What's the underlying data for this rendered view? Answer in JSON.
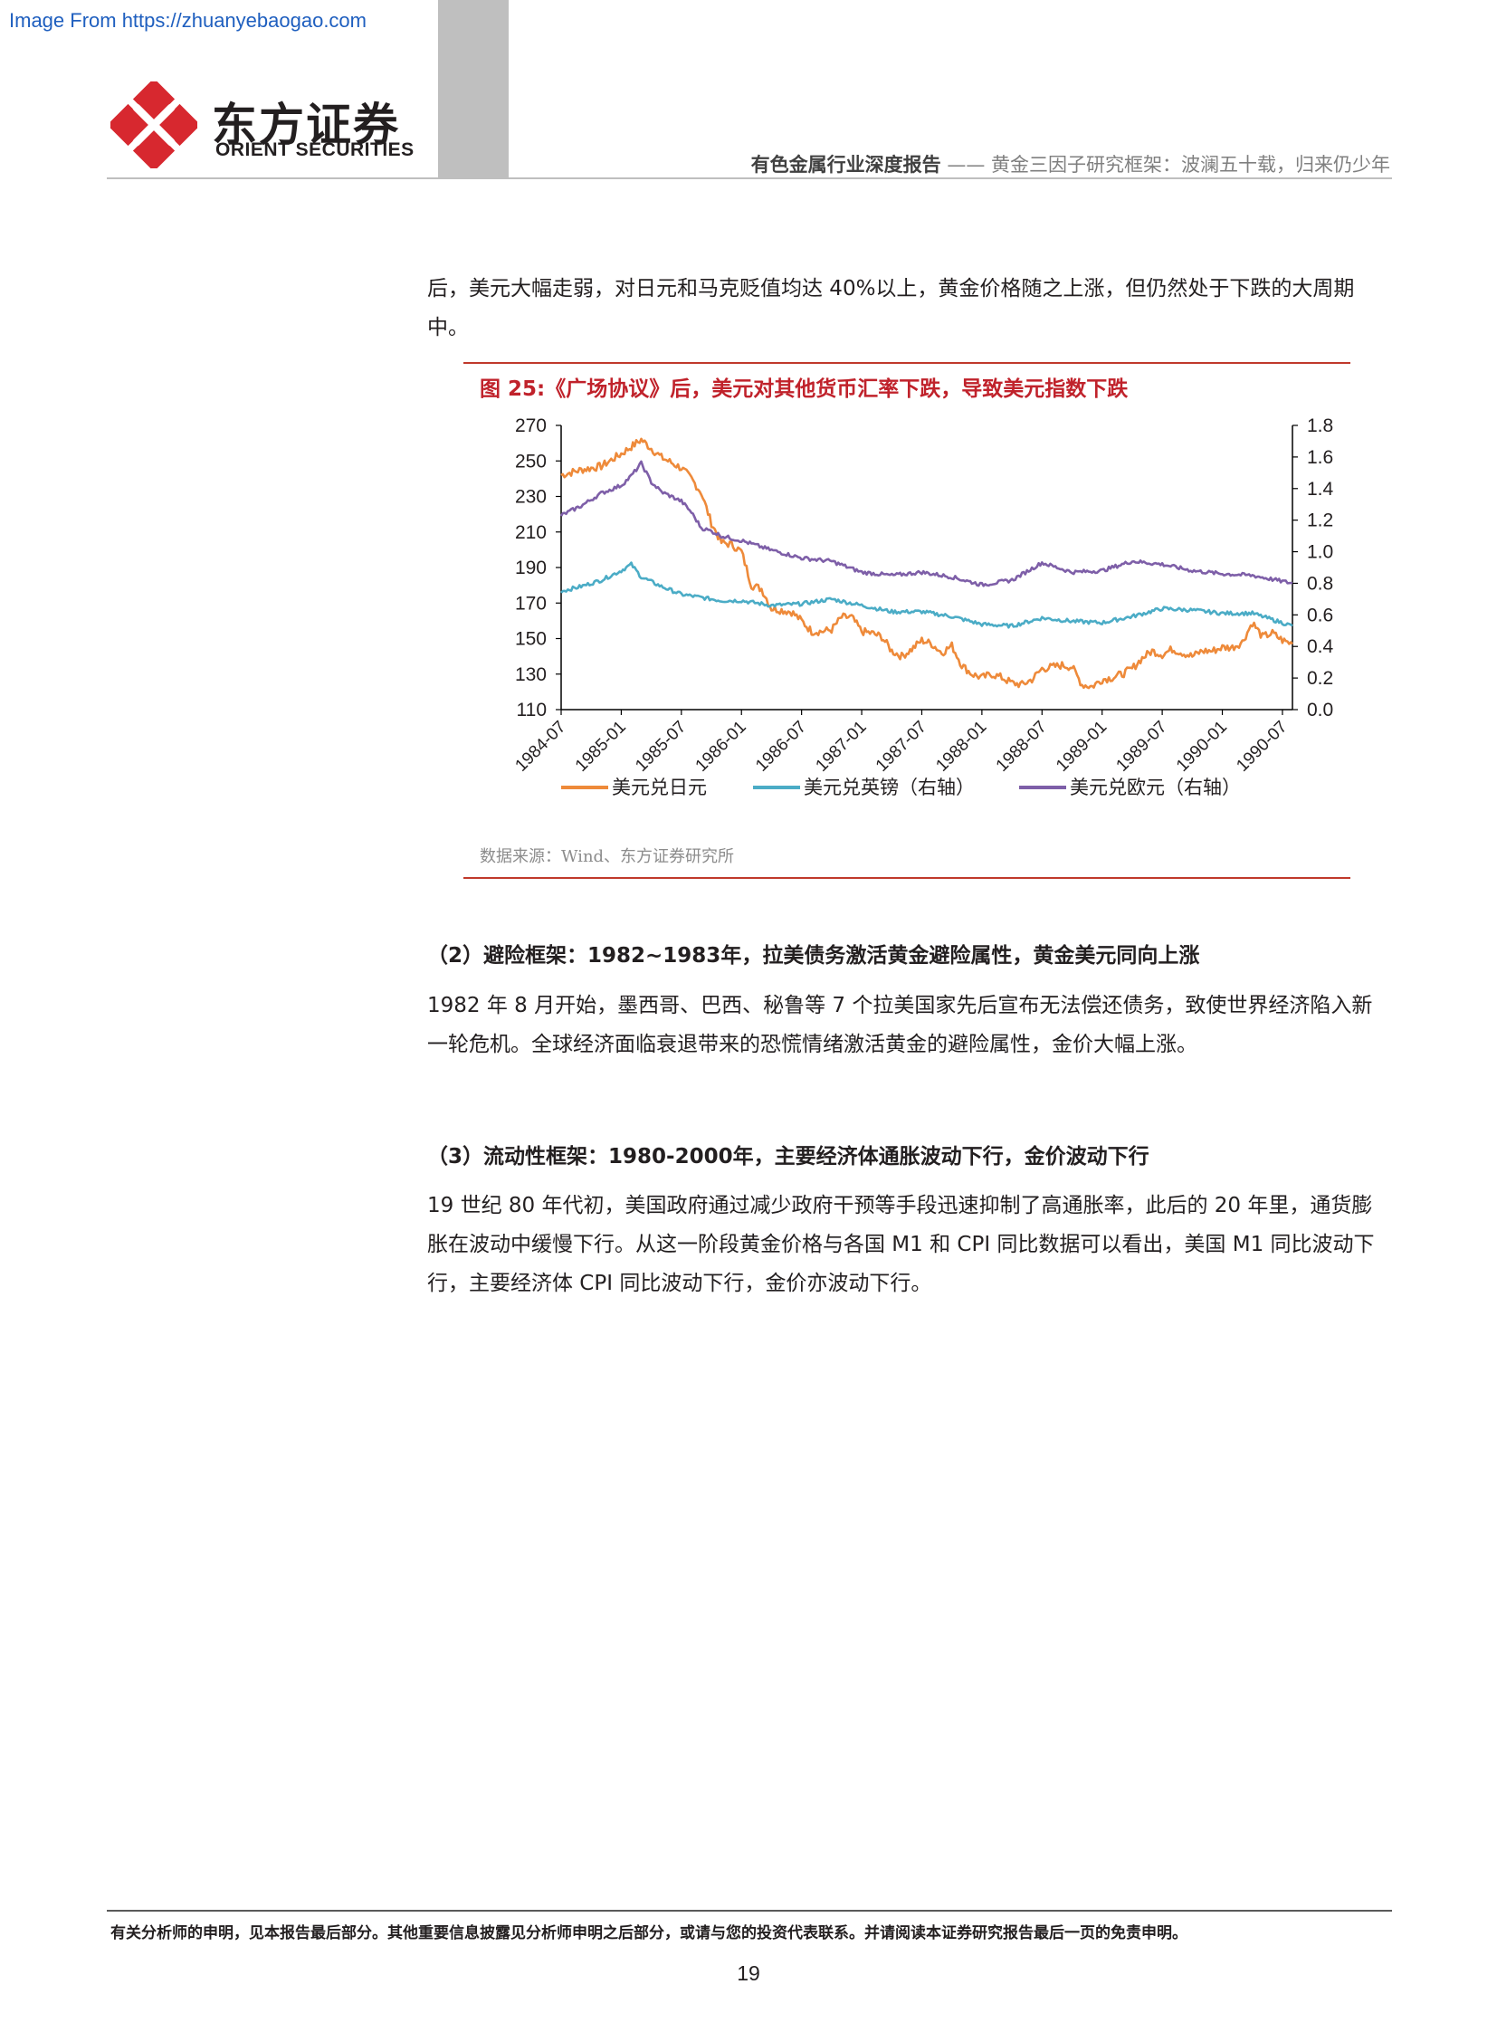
{
  "watermark": "Image From https://zhuanyebaogao.com",
  "brand": {
    "name_cn": "东方证券",
    "name_en": "ORIENT SECURITIES",
    "logo_color": "#d7282f"
  },
  "header": {
    "category": "有色金属行业深度报告",
    "separator": "——",
    "title": "黄金三因子研究框架：波澜五十载，归来仍少年"
  },
  "intro_paragraph": "后，美元大幅走弱，对日元和马克贬值均达 40%以上，黄金价格随之上涨，但仍然处于下跌的大周期中。",
  "figure": {
    "title": "图 25:《广场协议》后，美元对其他货币汇率下跌，导致美元指数下跌",
    "source": "数据来源：Wind、东方证券研究所"
  },
  "chart_data": {
    "type": "line",
    "x_ticks": [
      "1984-07",
      "1985-01",
      "1985-07",
      "1986-01",
      "1986-07",
      "1987-01",
      "1987-07",
      "1988-01",
      "1988-07",
      "1989-01",
      "1989-07",
      "1990-01",
      "1990-07"
    ],
    "x_range": [
      "1984-07",
      "1990-08"
    ],
    "y_left": {
      "ticks": [
        "110",
        "130",
        "150",
        "170",
        "190",
        "210",
        "230",
        "250",
        "270"
      ],
      "range": [
        110,
        270
      ]
    },
    "y_right": {
      "ticks": [
        "0.0",
        "0.2",
        "0.4",
        "0.6",
        "0.8",
        "1.0",
        "1.2",
        "1.4",
        "1.6",
        "1.8"
      ],
      "range": [
        0,
        1.8
      ]
    },
    "grid": false,
    "legend_position": "bottom",
    "series": [
      {
        "name": "美元兑日元",
        "axis": "left",
        "color": "#ee8a3a",
        "x": [
          "1984-07",
          "1984-09",
          "1984-11",
          "1985-01",
          "1985-02",
          "1985-03",
          "1985-05",
          "1985-07",
          "1985-08",
          "1985-09",
          "1985-10",
          "1985-11",
          "1985-12",
          "1986-01",
          "1986-02",
          "1986-03",
          "1986-04",
          "1986-05",
          "1986-06",
          "1986-07",
          "1986-08",
          "1986-09",
          "1986-10",
          "1986-11",
          "1986-12",
          "1987-01",
          "1987-02",
          "1987-03",
          "1987-04",
          "1987-05",
          "1987-06",
          "1987-07",
          "1987-08",
          "1987-09",
          "1987-10",
          "1987-11",
          "1987-12",
          "1988-01",
          "1988-02",
          "1988-03",
          "1988-04",
          "1988-05",
          "1988-06",
          "1988-07",
          "1988-08",
          "1988-09",
          "1988-10",
          "1988-11",
          "1988-12",
          "1989-01",
          "1989-02",
          "1989-03",
          "1989-04",
          "1989-05",
          "1989-06",
          "1989-07",
          "1989-08",
          "1989-09",
          "1989-10",
          "1989-11",
          "1989-12",
          "1990-01",
          "1990-02",
          "1990-03",
          "1990-04",
          "1990-05",
          "1990-06",
          "1990-07",
          "1990-08"
        ],
        "values": [
          242,
          245,
          247,
          254,
          258,
          262,
          252,
          246,
          240,
          232,
          215,
          204,
          203,
          199,
          180,
          178,
          167,
          166,
          165,
          160,
          154,
          154,
          155,
          162,
          162,
          154,
          153,
          151,
          143,
          140,
          144,
          149,
          147,
          142,
          146,
          135,
          130,
          128,
          130,
          128,
          125,
          124,
          127,
          133,
          134,
          135,
          134,
          124,
          123,
          127,
          128,
          130,
          133,
          139,
          143,
          141,
          144,
          142,
          140,
          143,
          143,
          145,
          145,
          148,
          159,
          151,
          153,
          149,
          147
        ]
      },
      {
        "name": "美元兑英镑（右轴）",
        "axis": "right",
        "color": "#4bacc6",
        "x": [
          "1984-07",
          "1984-09",
          "1984-11",
          "1985-01",
          "1985-02",
          "1985-03",
          "1985-05",
          "1985-07",
          "1985-09",
          "1985-11",
          "1986-01",
          "1986-04",
          "1986-07",
          "1986-10",
          "1987-01",
          "1987-04",
          "1987-07",
          "1987-10",
          "1988-01",
          "1988-04",
          "1988-07",
          "1988-10",
          "1989-01",
          "1989-04",
          "1989-07",
          "1989-10",
          "1990-01",
          "1990-04",
          "1990-08"
        ],
        "values": [
          0.75,
          0.78,
          0.82,
          0.88,
          0.92,
          0.84,
          0.78,
          0.73,
          0.71,
          0.69,
          0.69,
          0.66,
          0.67,
          0.7,
          0.66,
          0.62,
          0.62,
          0.59,
          0.54,
          0.53,
          0.58,
          0.56,
          0.55,
          0.59,
          0.64,
          0.63,
          0.61,
          0.61,
          0.53
        ]
      },
      {
        "name": "美元兑欧元（右轴）",
        "axis": "right",
        "color": "#7e5fa8",
        "x": [
          "1984-07",
          "1984-09",
          "1984-11",
          "1985-01",
          "1985-02",
          "1985-03",
          "1985-04",
          "1985-05",
          "1985-07",
          "1985-08",
          "1985-09",
          "1985-10",
          "1985-11",
          "1986-01",
          "1986-04",
          "1986-07",
          "1986-10",
          "1987-01",
          "1987-04",
          "1987-07",
          "1987-10",
          "1988-01",
          "1988-04",
          "1988-07",
          "1988-10",
          "1989-01",
          "1989-04",
          "1989-07",
          "1989-10",
          "1990-01",
          "1990-04",
          "1990-08"
        ],
        "values": [
          1.23,
          1.29,
          1.37,
          1.42,
          1.48,
          1.56,
          1.44,
          1.38,
          1.32,
          1.25,
          1.15,
          1.13,
          1.1,
          1.07,
          1.01,
          0.96,
          0.94,
          0.87,
          0.85,
          0.87,
          0.84,
          0.79,
          0.82,
          0.93,
          0.87,
          0.88,
          0.94,
          0.92,
          0.88,
          0.86,
          0.85,
          0.8
        ]
      }
    ]
  },
  "section2": {
    "heading_paren": "（2）",
    "heading_label": "避险框架：",
    "heading_years": "1982~1983",
    "heading_rest": "年，拉美债务激活黄金避险属性，黄金美元同向上涨",
    "body": "1982 年 8 月开始，墨西哥、巴西、秘鲁等 7 个拉美国家先后宣布无法偿还债务，致使世界经济陷入新一轮危机。全球经济面临衰退带来的恐慌情绪激活黄金的避险属性，金价大幅上涨。"
  },
  "section3": {
    "heading_paren": "（3）",
    "heading_label": "流动性框架：",
    "heading_years": "1980-2000",
    "heading_rest": "年，主要经济体通胀波动下行，金价波动下行",
    "body": "19 世纪 80 年代初，美国政府通过减少政府干预等手段迅速抑制了高通胀率，此后的 20 年里，通货膨胀在波动中缓慢下行。从这一阶段黄金价格与各国 M1 和 CPI 同比数据可以看出，美国 M1 同比波动下行，主要经济体 CPI 同比波动下行，金价亦波动下行。"
  },
  "footer": {
    "note": "有关分析师的申明，见本报告最后部分。其他重要信息披露见分析师申明之后部分，或请与您的投资代表联系。并请阅读本证券研究报告最后一页的免责申明。",
    "page_number": "19"
  }
}
